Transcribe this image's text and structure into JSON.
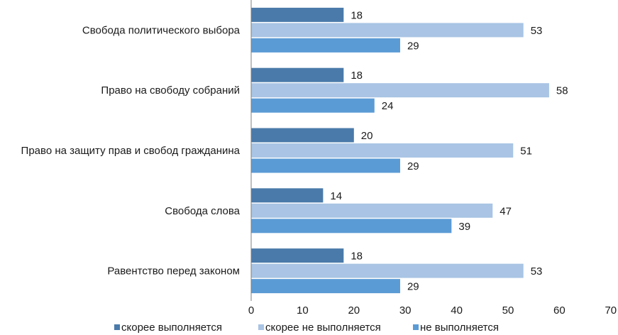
{
  "chart_data": {
    "type": "bar",
    "orientation": "horizontal",
    "categories": [
      "Свобода политического выбора",
      "Право на свободу собраний",
      "Право на защиту прав и свобод гражданина",
      "Свобода слова",
      "Равентство перед законом"
    ],
    "series": [
      {
        "name": "скорее выполняется",
        "color": "#4a7aaa",
        "values": [
          18,
          18,
          20,
          14,
          18
        ]
      },
      {
        "name": "скорее не выполняется",
        "color": "#a9c4e4",
        "values": [
          53,
          58,
          51,
          47,
          53
        ]
      },
      {
        "name": "не выполняется",
        "color": "#5b9bd5",
        "values": [
          29,
          24,
          29,
          39,
          29
        ]
      }
    ],
    "xlim": [
      0,
      70
    ],
    "xticks": [
      0,
      10,
      20,
      30,
      40,
      50,
      60,
      70
    ],
    "grid": false,
    "legend_position": "bottom",
    "data_labels": true
  }
}
